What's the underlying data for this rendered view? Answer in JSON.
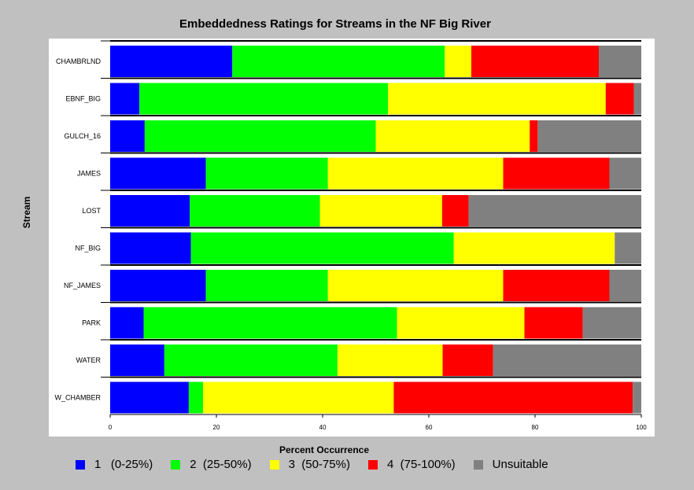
{
  "chart_data": {
    "type": "bar",
    "orientation": "horizontal",
    "stacked": true,
    "title": "Embeddedness Ratings for Streams in the NF Big River",
    "xlabel": "Percent Occurrence",
    "ylabel": "Stream",
    "xlim": [
      0,
      100
    ],
    "xticks": [
      "0",
      "20",
      "40",
      "60",
      "80",
      "100"
    ],
    "grid": false,
    "legend_position": "bottom",
    "categories": [
      "CHAMBRLND",
      "EBNF_BIG",
      "GULCH_16",
      "JAMES",
      "LOST",
      "NF_BIG",
      "NF_JAMES",
      "PARK",
      "WATER",
      "W_CHAMBER"
    ],
    "series": [
      {
        "name": "1   (0-25%)",
        "color": "#0000ff",
        "values": [
          23,
          5.5,
          6.5,
          18,
          15,
          15.2,
          18,
          6.3,
          10.2,
          14.8
        ]
      },
      {
        "name": "2  (25-50%)",
        "color": "#00ff00",
        "values": [
          40,
          46.8,
          43.5,
          23,
          24.5,
          49.5,
          23,
          47.7,
          32.6,
          2.7
        ]
      },
      {
        "name": "3  (50-75%)",
        "color": "#ffff00",
        "values": [
          5,
          41,
          29,
          33,
          23,
          30.3,
          33,
          24,
          19.8,
          35.9
        ]
      },
      {
        "name": "4  (75-100%)",
        "color": "#ff0000",
        "values": [
          24,
          5.3,
          1.5,
          20,
          5,
          0,
          20,
          11,
          9.5,
          45
        ]
      },
      {
        "name": "Unsuitable",
        "color": "#808080",
        "values": [
          8,
          1.4,
          19.5,
          6,
          32.5,
          5,
          6,
          11,
          27.9,
          1.6
        ]
      }
    ]
  }
}
